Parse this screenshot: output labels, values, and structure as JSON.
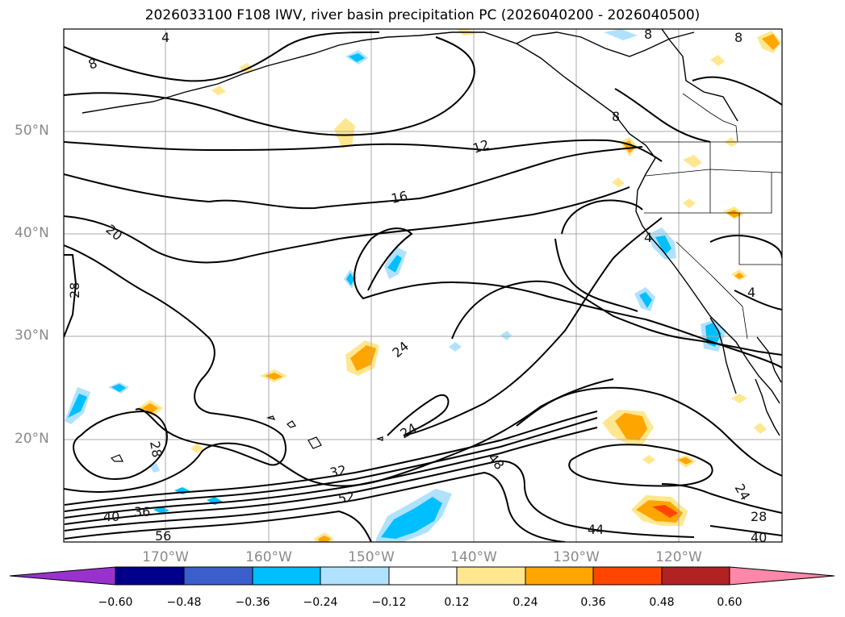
{
  "title": "2026033100 F108 IWV, river basin precipitation PC (2026040200 - 2026040500)",
  "lat_labels": [
    "50°N",
    "40°N",
    "30°N",
    "20°N"
  ],
  "lon_labels": [
    "170°W",
    "160°W",
    "150°W",
    "140°W",
    "130°W",
    "120°W"
  ],
  "colorbar": {
    "ticks": [
      "−0.60",
      "−0.48",
      "−0.36",
      "−0.24",
      "−0.12",
      "0.12",
      "0.24",
      "0.36",
      "0.48",
      "0.60"
    ],
    "colors": [
      "#9932cc",
      "#00008b",
      "#3a5fcd",
      "#00bfff",
      "#b0e2ff",
      "#ffffff",
      "#ffe78f",
      "#ffa500",
      "#ff4500",
      "#b22222",
      "#ff88aa"
    ]
  },
  "contour_labels": [
    "4",
    "8",
    "8",
    "8",
    "12",
    "16",
    "20",
    "28",
    "24",
    "24",
    "32",
    "36",
    "40",
    "52",
    "56",
    "48",
    "44",
    "28",
    "24",
    "40",
    "4",
    "4",
    "8",
    "28"
  ]
}
